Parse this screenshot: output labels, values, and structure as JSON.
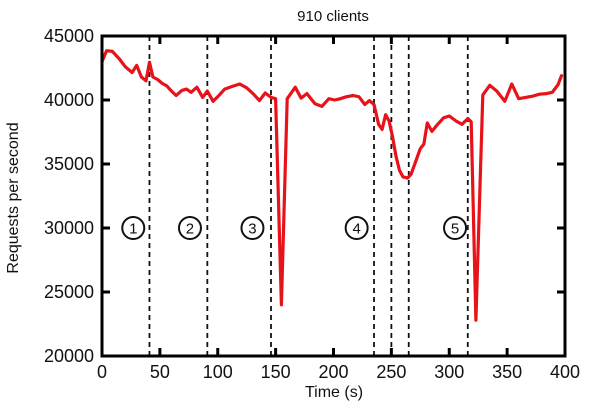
{
  "chart_data": {
    "type": "line",
    "title": "910 clients",
    "xlabel": "Time (s)",
    "ylabel": "Requests per second",
    "xlim": [
      0,
      400
    ],
    "ylim": [
      20000,
      45000
    ],
    "xticks": [
      0,
      50,
      100,
      150,
      200,
      250,
      300,
      350,
      400
    ],
    "yticks": [
      20000,
      25000,
      30000,
      35000,
      40000,
      45000
    ],
    "grid": false,
    "legend": false,
    "frame_color": "#000000",
    "series": [
      {
        "name": "requests per second",
        "color": "#e8131a",
        "points": [
          [
            0,
            43000
          ],
          [
            4,
            43850
          ],
          [
            9,
            43800
          ],
          [
            15,
            43200
          ],
          [
            20,
            42600
          ],
          [
            26,
            42150
          ],
          [
            30,
            42700
          ],
          [
            34,
            41800
          ],
          [
            38,
            41500
          ],
          [
            41,
            42950
          ],
          [
            44,
            41800
          ],
          [
            48,
            41600
          ],
          [
            52,
            41300
          ],
          [
            56,
            41100
          ],
          [
            60,
            40700
          ],
          [
            64,
            40350
          ],
          [
            69,
            40750
          ],
          [
            73,
            40850
          ],
          [
            77,
            40600
          ],
          [
            82,
            41000
          ],
          [
            87,
            40200
          ],
          [
            91,
            40700
          ],
          [
            96,
            39900
          ],
          [
            101,
            40350
          ],
          [
            106,
            40850
          ],
          [
            112,
            41050
          ],
          [
            119,
            41250
          ],
          [
            125,
            40950
          ],
          [
            131,
            40450
          ],
          [
            136,
            39950
          ],
          [
            141,
            40550
          ],
          [
            146,
            40200
          ],
          [
            150,
            40100
          ],
          [
            155,
            24000
          ],
          [
            160,
            40100
          ],
          [
            167,
            41000
          ],
          [
            172,
            40150
          ],
          [
            177,
            40500
          ],
          [
            184,
            39700
          ],
          [
            190,
            39500
          ],
          [
            196,
            40100
          ],
          [
            201,
            40000
          ],
          [
            206,
            40100
          ],
          [
            211,
            40250
          ],
          [
            217,
            40350
          ],
          [
            222,
            40250
          ],
          [
            227,
            39650
          ],
          [
            231,
            39950
          ],
          [
            235,
            39650
          ],
          [
            239,
            38100
          ],
          [
            242,
            37700
          ],
          [
            245,
            38850
          ],
          [
            248,
            38350
          ],
          [
            251,
            37150
          ],
          [
            254,
            35600
          ],
          [
            257,
            34500
          ],
          [
            260,
            34000
          ],
          [
            264,
            33900
          ],
          [
            267,
            34200
          ],
          [
            271,
            35200
          ],
          [
            275,
            36200
          ],
          [
            278,
            36550
          ],
          [
            281,
            38200
          ],
          [
            285,
            37550
          ],
          [
            290,
            38100
          ],
          [
            295,
            38600
          ],
          [
            300,
            38750
          ],
          [
            306,
            38350
          ],
          [
            311,
            38100
          ],
          [
            316,
            38550
          ],
          [
            319,
            38300
          ],
          [
            323,
            22800
          ],
          [
            329,
            40400
          ],
          [
            335,
            41150
          ],
          [
            341,
            40700
          ],
          [
            348,
            39900
          ],
          [
            354,
            41250
          ],
          [
            360,
            40100
          ],
          [
            366,
            40200
          ],
          [
            372,
            40300
          ],
          [
            378,
            40450
          ],
          [
            384,
            40500
          ],
          [
            389,
            40600
          ],
          [
            394,
            41200
          ],
          [
            397,
            41900
          ]
        ]
      }
    ],
    "event_lines": {
      "style": "dashed",
      "color": "#111111",
      "x_values": [
        41,
        91,
        146,
        235,
        250,
        265,
        316
      ]
    },
    "phase_markers": {
      "y_value": 30000,
      "digit_color": "#2c3380",
      "circle_color": "#111111",
      "items": [
        {
          "label": "1",
          "x": 27
        },
        {
          "label": "2",
          "x": 76
        },
        {
          "label": "3",
          "x": 130
        },
        {
          "label": "4",
          "x": 220
        },
        {
          "label": "5",
          "x": 305
        }
      ]
    }
  }
}
